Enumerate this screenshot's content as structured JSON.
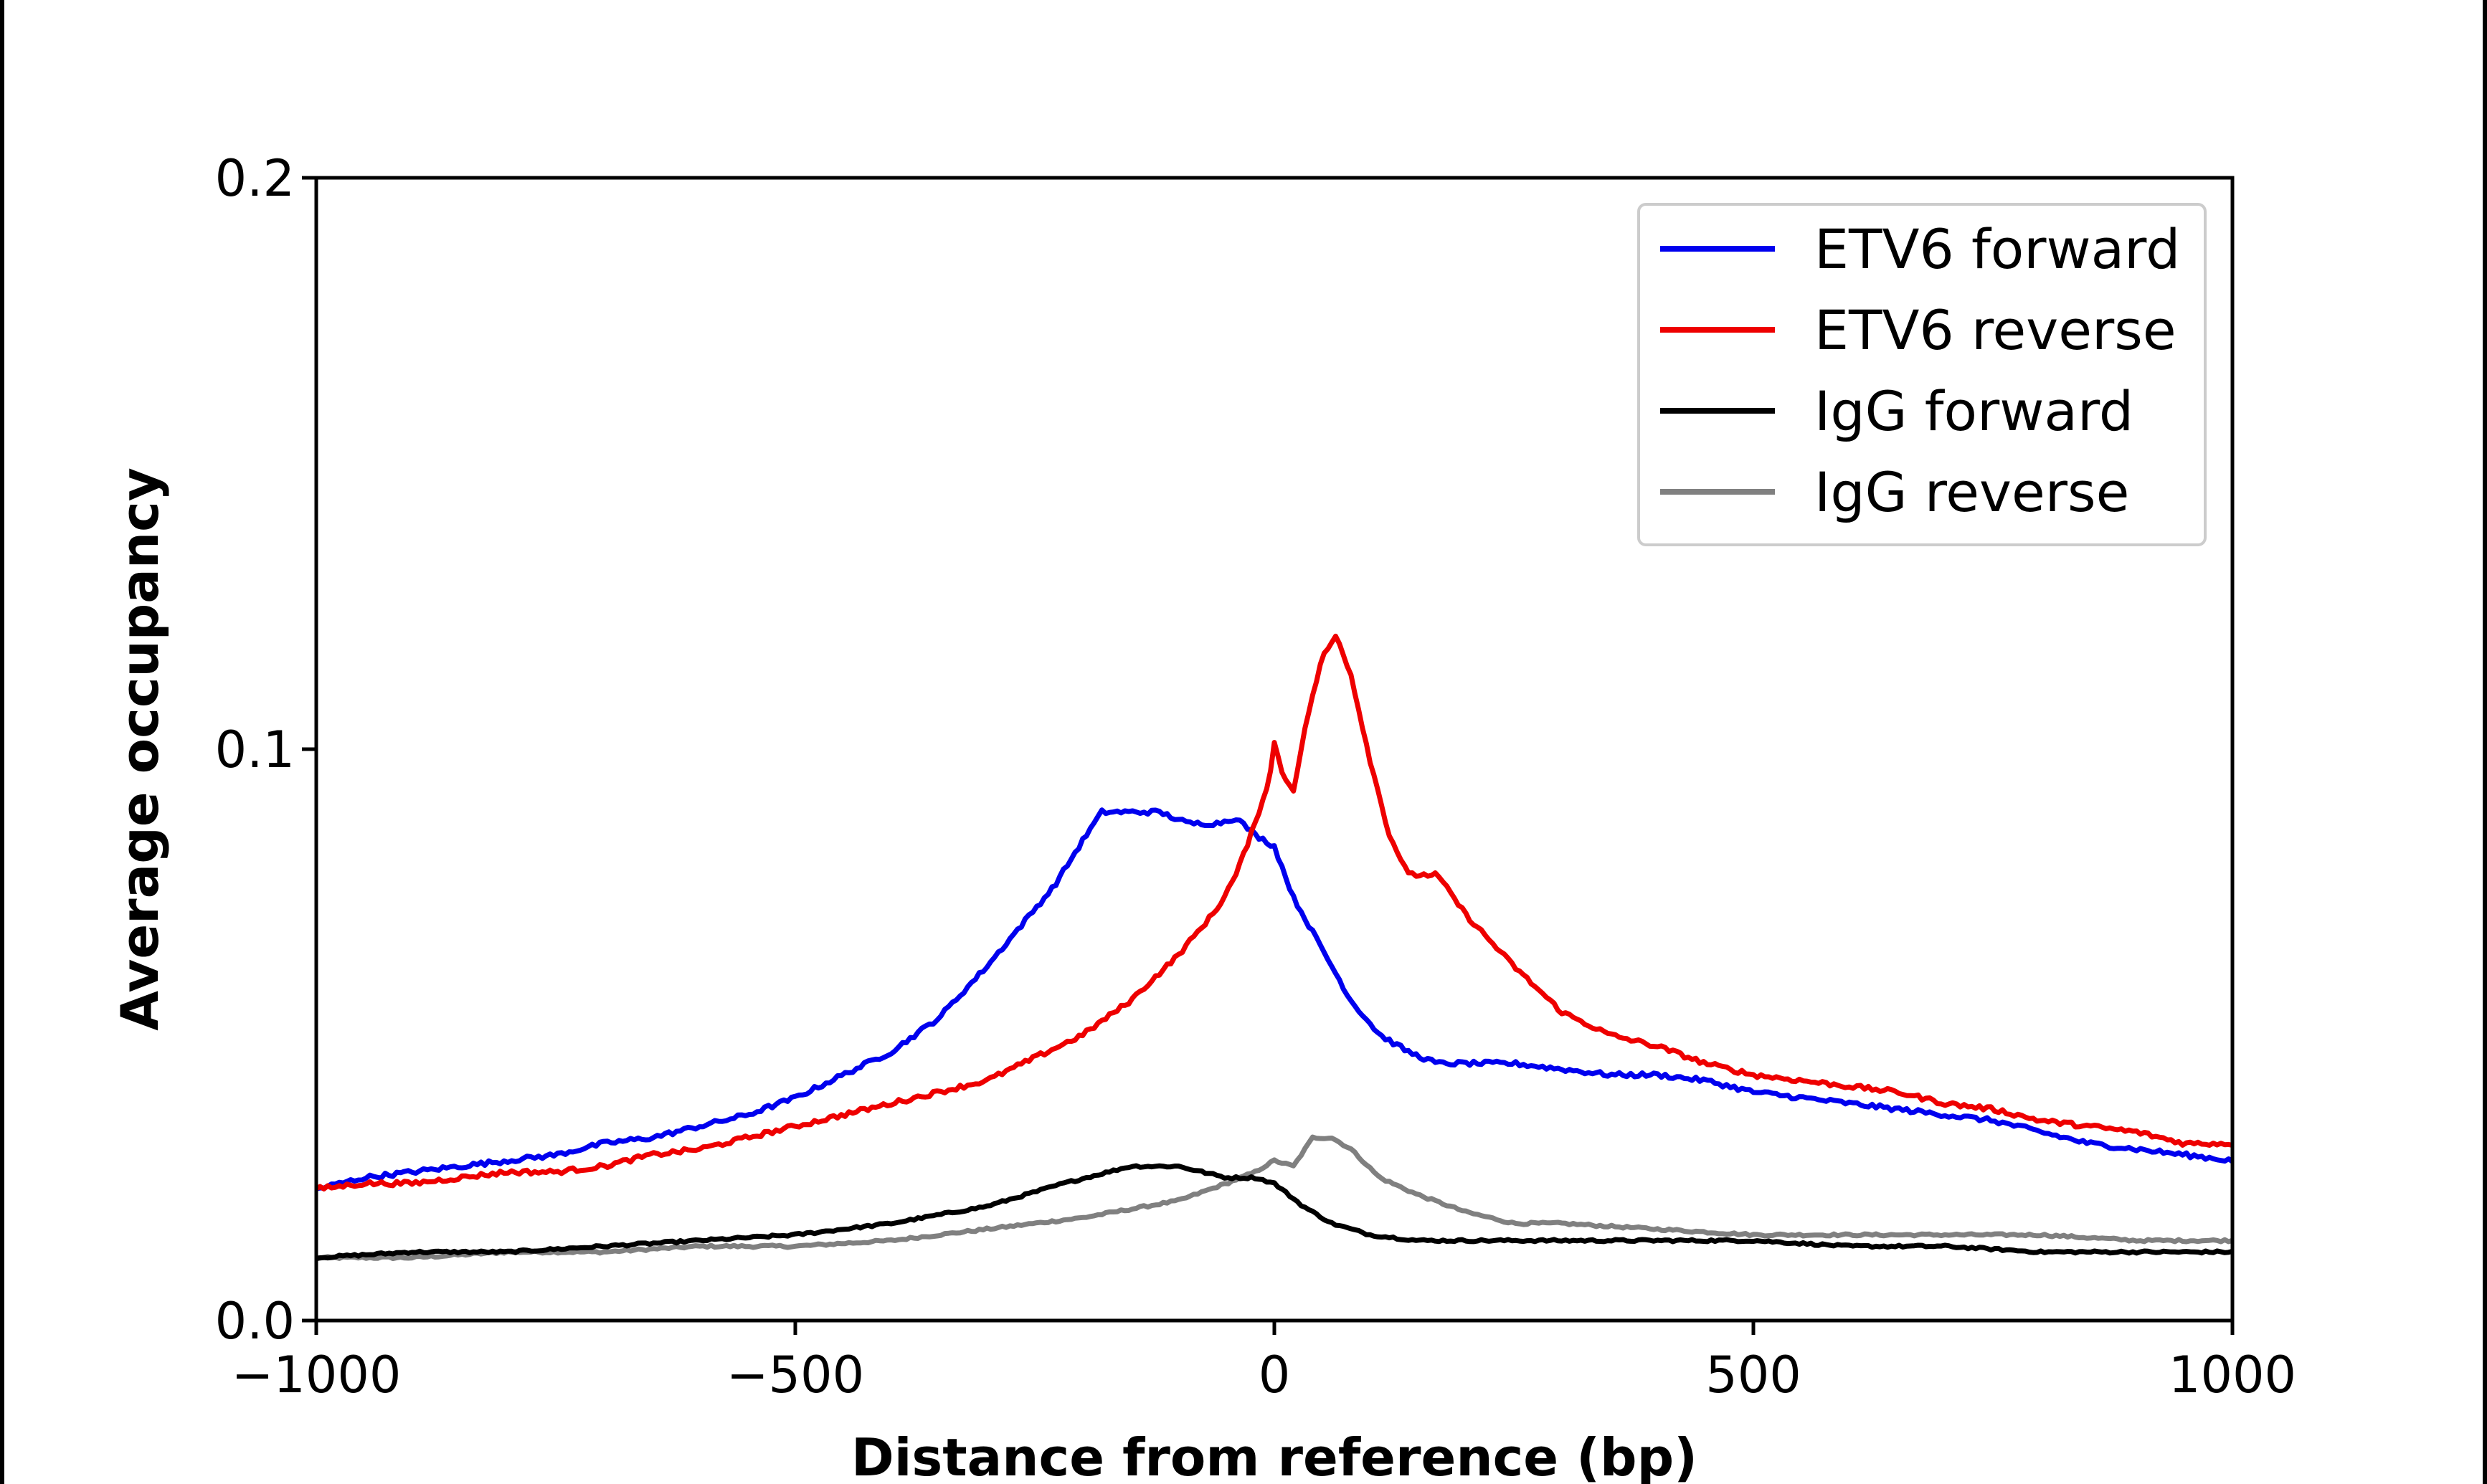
{
  "chart_data": {
    "type": "line",
    "title": "",
    "xlabel": "Distance from reference (bp)",
    "ylabel": "Average occupancy",
    "xlim": [
      -1000,
      1000
    ],
    "ylim": [
      0.0,
      0.2
    ],
    "xticks": [
      -1000,
      -500,
      0,
      500,
      1000
    ],
    "xtick_labels": [
      "−1000",
      "−500",
      "0",
      "500",
      "1000"
    ],
    "yticks": [
      0.0,
      0.1,
      0.2
    ],
    "ytick_labels": [
      "0.0",
      "0.1",
      "0.2"
    ],
    "grid": false,
    "legend": {
      "position": "top-right"
    },
    "series": [
      {
        "name": "ETV6 forward",
        "color": "#0000ee",
        "points": [
          [
            -1000,
            0.023
          ],
          [
            -950,
            0.025
          ],
          [
            -900,
            0.026
          ],
          [
            -850,
            0.027
          ],
          [
            -800,
            0.028
          ],
          [
            -750,
            0.029
          ],
          [
            -700,
            0.031
          ],
          [
            -650,
            0.032
          ],
          [
            -600,
            0.034
          ],
          [
            -550,
            0.036
          ],
          [
            -500,
            0.039
          ],
          [
            -450,
            0.043
          ],
          [
            -400,
            0.047
          ],
          [
            -350,
            0.053
          ],
          [
            -300,
            0.062
          ],
          [
            -260,
            0.07
          ],
          [
            -230,
            0.076
          ],
          [
            -200,
            0.084
          ],
          [
            -180,
            0.089
          ],
          [
            -150,
            0.089
          ],
          [
            -120,
            0.089
          ],
          [
            -90,
            0.087
          ],
          [
            -60,
            0.087
          ],
          [
            -40,
            0.088
          ],
          [
            -20,
            0.085
          ],
          [
            0,
            0.083
          ],
          [
            20,
            0.074
          ],
          [
            50,
            0.065
          ],
          [
            80,
            0.056
          ],
          [
            110,
            0.05
          ],
          [
            140,
            0.047
          ],
          [
            170,
            0.045
          ],
          [
            200,
            0.045
          ],
          [
            250,
            0.045
          ],
          [
            300,
            0.044
          ],
          [
            350,
            0.043
          ],
          [
            400,
            0.043
          ],
          [
            450,
            0.042
          ],
          [
            500,
            0.04
          ],
          [
            550,
            0.039
          ],
          [
            600,
            0.038
          ],
          [
            650,
            0.037
          ],
          [
            700,
            0.036
          ],
          [
            750,
            0.035
          ],
          [
            800,
            0.033
          ],
          [
            850,
            0.031
          ],
          [
            900,
            0.03
          ],
          [
            950,
            0.029
          ],
          [
            1000,
            0.028
          ]
        ]
      },
      {
        "name": "ETV6 reverse",
        "color": "#ee0000",
        "points": [
          [
            -1000,
            0.023
          ],
          [
            -950,
            0.024
          ],
          [
            -900,
            0.024
          ],
          [
            -850,
            0.025
          ],
          [
            -800,
            0.026
          ],
          [
            -750,
            0.026
          ],
          [
            -700,
            0.027
          ],
          [
            -650,
            0.029
          ],
          [
            -600,
            0.03
          ],
          [
            -550,
            0.032
          ],
          [
            -500,
            0.034
          ],
          [
            -450,
            0.036
          ],
          [
            -400,
            0.038
          ],
          [
            -350,
            0.04
          ],
          [
            -300,
            0.042
          ],
          [
            -250,
            0.046
          ],
          [
            -200,
            0.05
          ],
          [
            -150,
            0.056
          ],
          [
            -100,
            0.064
          ],
          [
            -60,
            0.072
          ],
          [
            -40,
            0.078
          ],
          [
            -20,
            0.087
          ],
          [
            -5,
            0.095
          ],
          [
            0,
            0.101
          ],
          [
            10,
            0.095
          ],
          [
            20,
            0.093
          ],
          [
            35,
            0.106
          ],
          [
            50,
            0.116
          ],
          [
            65,
            0.12
          ],
          [
            80,
            0.113
          ],
          [
            100,
            0.098
          ],
          [
            120,
            0.085
          ],
          [
            140,
            0.078
          ],
          [
            170,
            0.078
          ],
          [
            200,
            0.071
          ],
          [
            250,
            0.062
          ],
          [
            300,
            0.054
          ],
          [
            350,
            0.05
          ],
          [
            400,
            0.048
          ],
          [
            450,
            0.045
          ],
          [
            500,
            0.043
          ],
          [
            550,
            0.042
          ],
          [
            600,
            0.041
          ],
          [
            650,
            0.04
          ],
          [
            700,
            0.038
          ],
          [
            750,
            0.037
          ],
          [
            800,
            0.035
          ],
          [
            850,
            0.034
          ],
          [
            900,
            0.033
          ],
          [
            950,
            0.031
          ],
          [
            1000,
            0.031
          ]
        ]
      },
      {
        "name": "IgG forward",
        "color": "#000000",
        "points": [
          [
            -1000,
            0.011
          ],
          [
            -900,
            0.012
          ],
          [
            -800,
            0.012
          ],
          [
            -700,
            0.013
          ],
          [
            -600,
            0.014
          ],
          [
            -500,
            0.015
          ],
          [
            -400,
            0.017
          ],
          [
            -300,
            0.02
          ],
          [
            -220,
            0.024
          ],
          [
            -150,
            0.027
          ],
          [
            -100,
            0.027
          ],
          [
            -50,
            0.025
          ],
          [
            -20,
            0.025
          ],
          [
            0,
            0.024
          ],
          [
            30,
            0.02
          ],
          [
            60,
            0.017
          ],
          [
            100,
            0.015
          ],
          [
            150,
            0.014
          ],
          [
            200,
            0.014
          ],
          [
            300,
            0.014
          ],
          [
            400,
            0.014
          ],
          [
            500,
            0.014
          ],
          [
            600,
            0.013
          ],
          [
            700,
            0.013
          ],
          [
            800,
            0.012
          ],
          [
            900,
            0.012
          ],
          [
            1000,
            0.012
          ]
        ]
      },
      {
        "name": "IgG reverse",
        "color": "#808080",
        "points": [
          [
            -1000,
            0.011
          ],
          [
            -900,
            0.011
          ],
          [
            -800,
            0.012
          ],
          [
            -700,
            0.012
          ],
          [
            -600,
            0.013
          ],
          [
            -500,
            0.013
          ],
          [
            -400,
            0.014
          ],
          [
            -300,
            0.016
          ],
          [
            -200,
            0.018
          ],
          [
            -100,
            0.021
          ],
          [
            -50,
            0.024
          ],
          [
            -20,
            0.026
          ],
          [
            0,
            0.028
          ],
          [
            20,
            0.027
          ],
          [
            40,
            0.032
          ],
          [
            60,
            0.032
          ],
          [
            80,
            0.03
          ],
          [
            110,
            0.025
          ],
          [
            150,
            0.022
          ],
          [
            200,
            0.019
          ],
          [
            250,
            0.017
          ],
          [
            300,
            0.017
          ],
          [
            400,
            0.016
          ],
          [
            500,
            0.015
          ],
          [
            600,
            0.015
          ],
          [
            700,
            0.015
          ],
          [
            800,
            0.015
          ],
          [
            900,
            0.014
          ],
          [
            1000,
            0.014
          ]
        ]
      }
    ]
  }
}
